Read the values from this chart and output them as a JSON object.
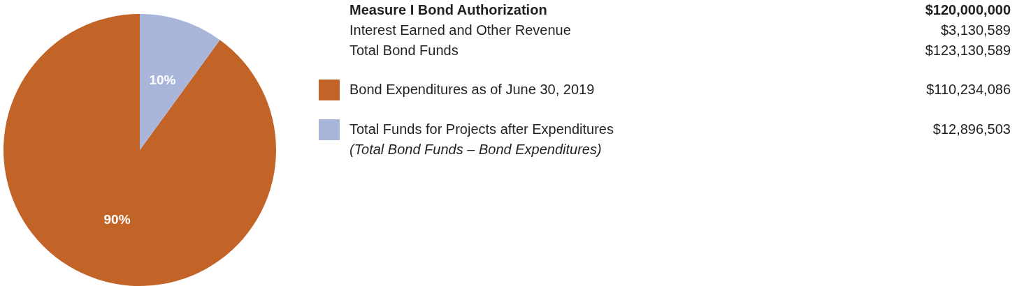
{
  "chart_data": {
    "type": "pie",
    "categories": [
      "Bond Expenditures as of June 30, 2019",
      "Total Funds for Projects after Expenditures"
    ],
    "values": [
      90,
      10
    ],
    "value_labels": [
      "90%",
      "10%"
    ],
    "colors": [
      "#c26428",
      "#a9b5d9"
    ],
    "legend": "right",
    "annotations": [
      "Measure I Bond Authorization",
      "$120,000,000",
      "Interest Earned and Other Revenue",
      "$3,130,589",
      "Total Bond Funds",
      "$123,130,589",
      "$110,234,086",
      "$12,896,503",
      "(Total Bond Funds – Bond Expenditures)"
    ]
  }
}
